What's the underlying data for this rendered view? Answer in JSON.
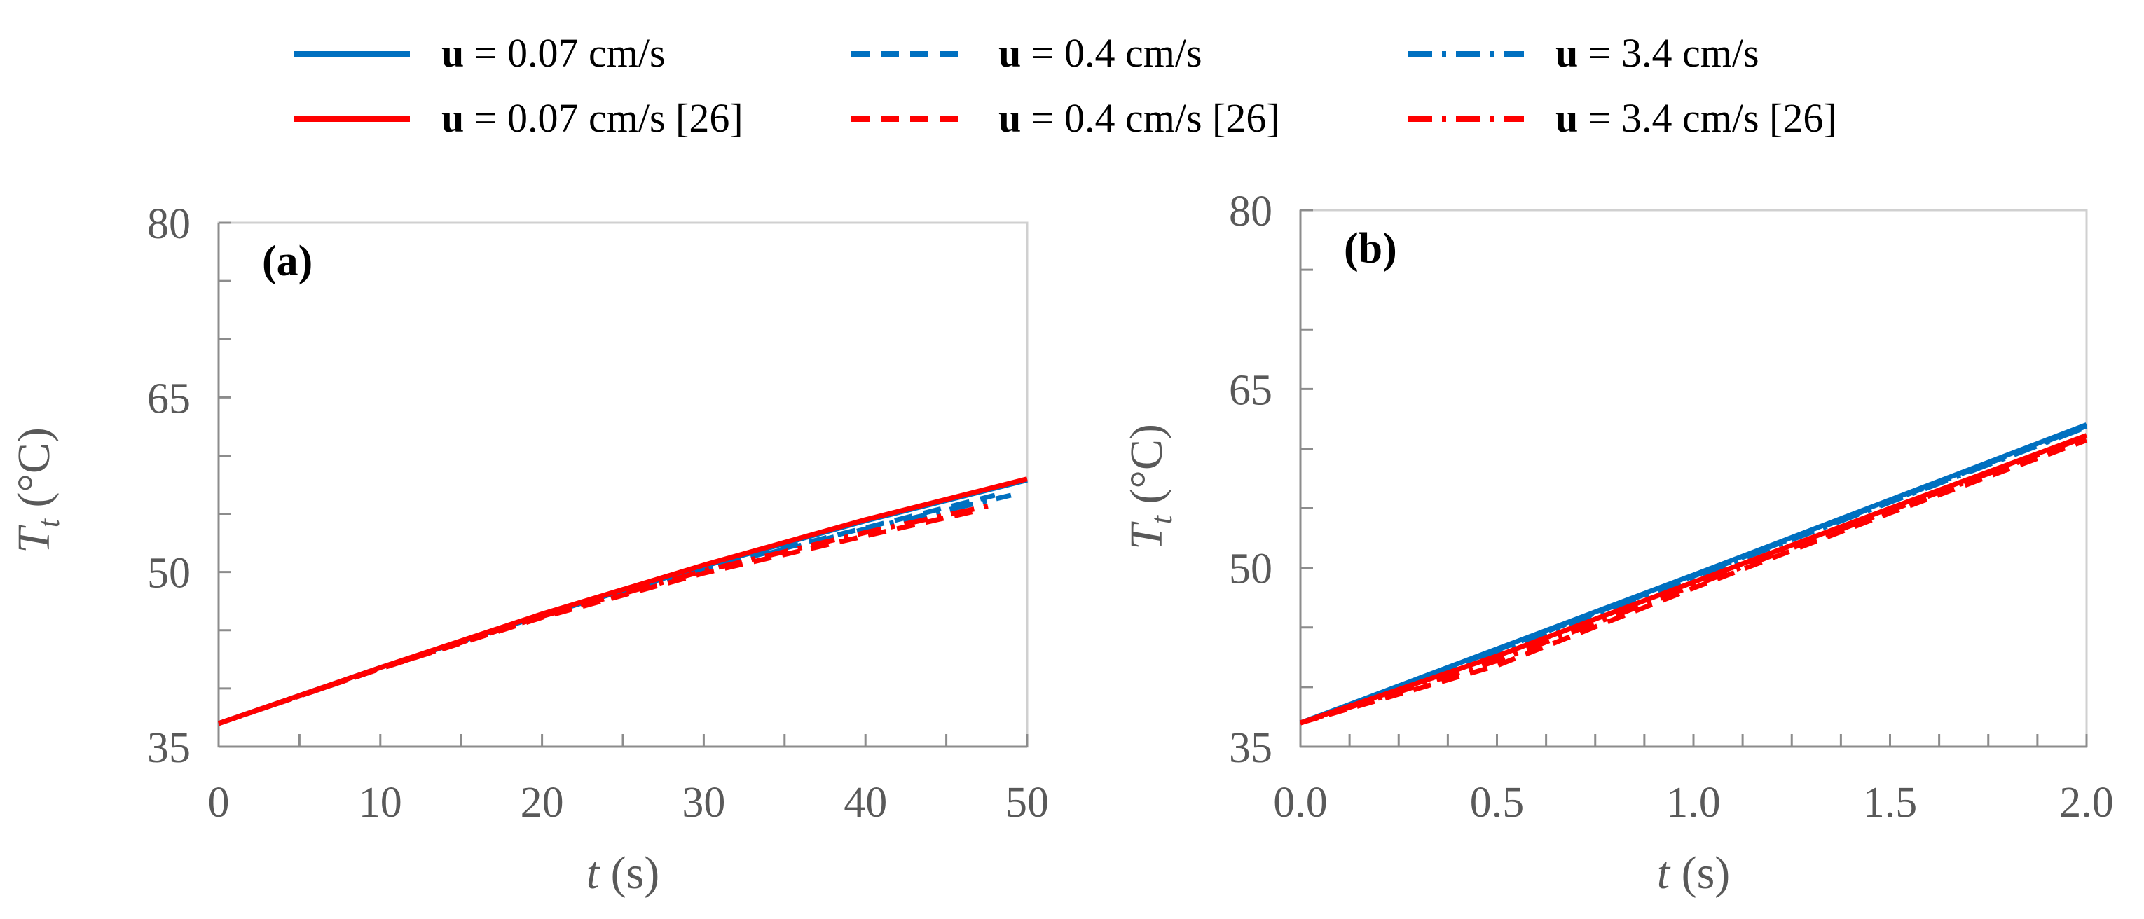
{
  "legend": [
    {
      "prefix": "u",
      "label": " = 0.07 cm/s",
      "color": "#0070C0",
      "dash": "solid"
    },
    {
      "prefix": "u",
      "label": " = 0.4 cm/s",
      "color": "#0070C0",
      "dash": "dash"
    },
    {
      "prefix": "u",
      "label": " = 3.4 cm/s",
      "color": "#0070C0",
      "dash": "dashdot"
    },
    {
      "prefix": "u",
      "label": " = 0.07 cm/s [26]",
      "color": "#FF0000",
      "dash": "solid"
    },
    {
      "prefix": "u",
      "label": " = 0.4 cm/s [26]",
      "color": "#FF0000",
      "dash": "dash"
    },
    {
      "prefix": "u",
      "label": " = 3.4 cm/s [26]",
      "color": "#FF0000",
      "dash": "dashdot"
    }
  ],
  "chart_data": [
    {
      "type": "line",
      "panel_label": "(a)",
      "xlabel_var": "t",
      "xlabel_unit": " (s)",
      "ylabel_var": "T",
      "ylabel_sub": "t",
      "ylabel_unit": " (°C)",
      "xlim": [
        0,
        50
      ],
      "ylim": [
        35,
        80
      ],
      "xticks": [
        "0",
        "10",
        "20",
        "30",
        "40",
        "50"
      ],
      "yticks": [
        "35",
        "50",
        "65",
        "80"
      ],
      "series": [
        {
          "name": "u = 0.07 cm/s",
          "color": "#0070C0",
          "dash": "solid",
          "x": [
            0,
            10,
            20,
            30,
            40,
            50
          ],
          "y": [
            37.0,
            41.8,
            46.3,
            50.5,
            54.4,
            57.9
          ]
        },
        {
          "name": "u = 0.4 cm/s",
          "color": "#0070C0",
          "dash": "dash",
          "x": [
            0,
            10,
            20,
            30,
            40,
            48
          ],
          "y": [
            37.0,
            41.7,
            46.2,
            50.3,
            53.8,
            56.6
          ]
        },
        {
          "name": "u = 3.4 cm/s",
          "color": "#0070C0",
          "dash": "dashdot",
          "x": [
            0,
            10,
            20,
            30,
            40,
            49
          ],
          "y": [
            37.0,
            41.7,
            46.2,
            50.2,
            53.7,
            56.6
          ]
        },
        {
          "name": "u = 0.07 cm/s [26]",
          "color": "#FF0000",
          "dash": "solid",
          "x": [
            0,
            10,
            20,
            30,
            40,
            50
          ],
          "y": [
            37.0,
            41.8,
            46.4,
            50.6,
            54.5,
            58.0
          ]
        },
        {
          "name": "u = 0.4 cm/s [26]",
          "color": "#FF0000",
          "dash": "dash",
          "x": [
            0,
            10,
            20,
            30,
            40,
            47
          ],
          "y": [
            37.0,
            41.7,
            46.1,
            49.9,
            53.1,
            55.3
          ]
        },
        {
          "name": "u = 3.4 cm/s [26]",
          "color": "#FF0000",
          "dash": "dashdot",
          "x": [
            0,
            10,
            20,
            30,
            40,
            48
          ],
          "y": [
            37.0,
            41.7,
            46.2,
            50.1,
            53.4,
            55.8
          ]
        }
      ]
    },
    {
      "type": "line",
      "panel_label": "(b)",
      "xlabel_var": "t",
      "xlabel_unit": " (s)",
      "ylabel_var": "T",
      "ylabel_sub": "t",
      "ylabel_unit": " (°C)",
      "xlim": [
        0,
        2
      ],
      "ylim": [
        35,
        80
      ],
      "xticks": [
        "0.0",
        "0.5",
        "1.0",
        "1.5",
        "2.0"
      ],
      "yticks": [
        "35",
        "50",
        "65",
        "80"
      ],
      "series": [
        {
          "name": "u = 0.07 cm/s",
          "color": "#0070C0",
          "dash": "solid",
          "x": [
            0,
            0.5,
            1.0,
            1.5,
            2.0
          ],
          "y": [
            37.0,
            43.2,
            49.4,
            55.7,
            62.0
          ]
        },
        {
          "name": "u = 0.4 cm/s",
          "color": "#0070C0",
          "dash": "dash",
          "x": [
            0,
            0.5,
            1.0,
            1.5,
            2.0
          ],
          "y": [
            37.0,
            43.1,
            49.3,
            55.6,
            61.9
          ]
        },
        {
          "name": "u = 3.4 cm/s",
          "color": "#0070C0",
          "dash": "dashdot",
          "x": [
            0,
            0.5,
            1.0,
            1.5,
            2.0
          ],
          "y": [
            37.0,
            43.0,
            49.2,
            55.5,
            61.8
          ]
        },
        {
          "name": "u = 0.07 cm/s [26]",
          "color": "#FF0000",
          "dash": "solid",
          "x": [
            0,
            0.5,
            1.0,
            1.5,
            2.0
          ],
          "y": [
            37.0,
            42.6,
            48.8,
            55.0,
            61.1
          ]
        },
        {
          "name": "u = 0.4 cm/s [26]",
          "color": "#FF0000",
          "dash": "dash",
          "x": [
            0,
            0.5,
            1.0,
            1.5,
            2.0
          ],
          "y": [
            37.0,
            41.8,
            48.3,
            54.6,
            60.7
          ]
        },
        {
          "name": "u = 3.4 cm/s [26]",
          "color": "#FF0000",
          "dash": "dashdot",
          "x": [
            0,
            0.5,
            1.0,
            1.5,
            2.0
          ],
          "y": [
            37.0,
            42.2,
            48.5,
            54.8,
            61.0
          ]
        }
      ]
    }
  ]
}
